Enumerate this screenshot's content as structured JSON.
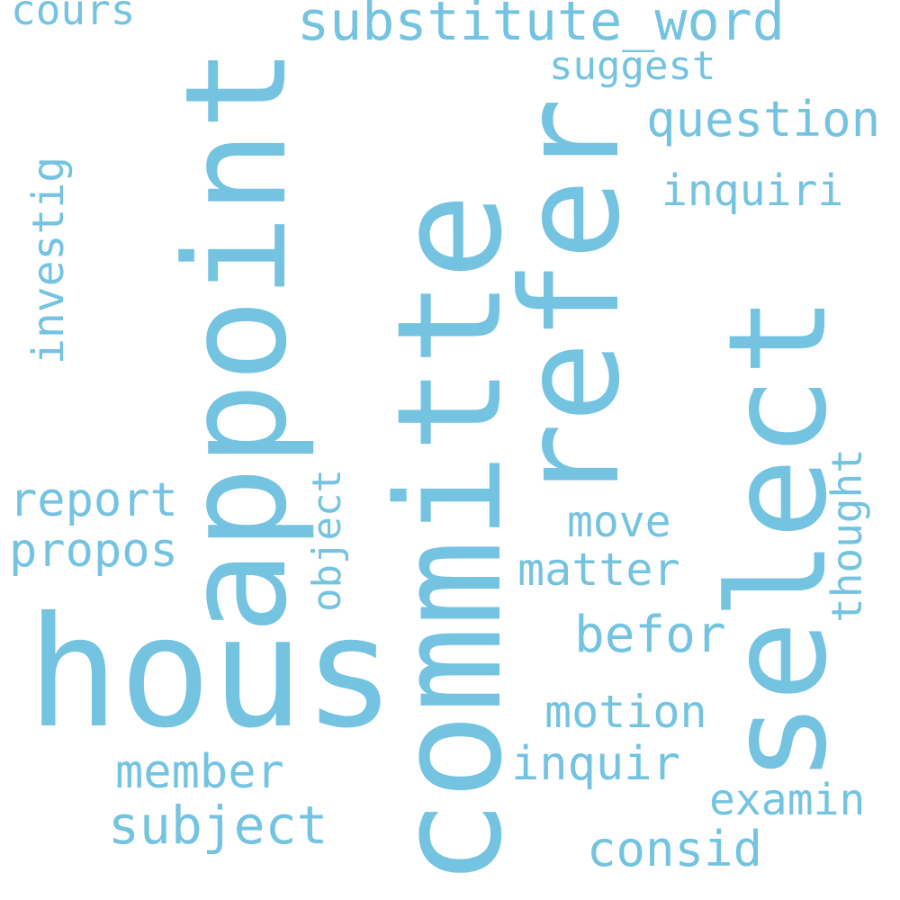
{
  "word_cloud": {
    "color": "#74c3e1",
    "background": "#ffffff",
    "words": {
      "cours": "cours",
      "substitute_word": "substitute_word",
      "suggest": "suggest",
      "question": "question",
      "inquiri": "inquiri",
      "investig": "investig",
      "appoint": "appoint",
      "committe": "committe",
      "refer": "refer",
      "select": "select",
      "report": "report",
      "propos": "propos",
      "object": "object",
      "move": "move",
      "matter": "matter",
      "thought": "thought",
      "befor": "befor",
      "hous": "hous",
      "motion": "motion",
      "inquir": "inquir",
      "member": "member",
      "examin": "examin",
      "subject": "subject",
      "consid": "consid"
    }
  }
}
